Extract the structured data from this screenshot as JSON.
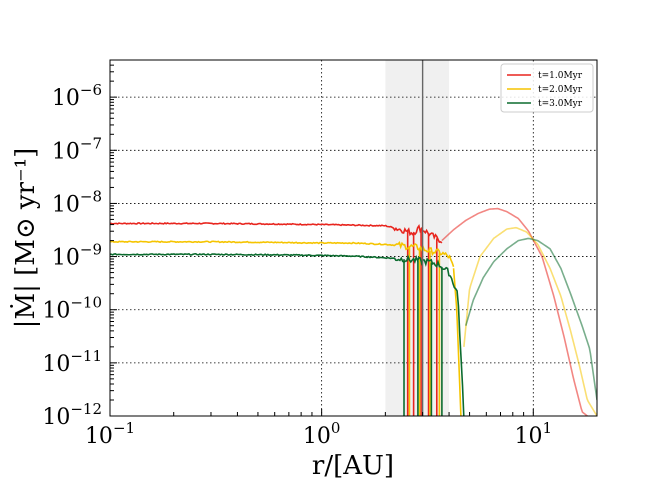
{
  "chart_data": {
    "type": "line",
    "xlabel": "r/[AU]",
    "ylabel": "|Ṁ| [M⊙ yr⁻¹]",
    "xscale": "log",
    "yscale": "log",
    "xlim": [
      0.1,
      20
    ],
    "ylim": [
      1e-12,
      5e-06
    ],
    "grid": true,
    "legend_position": "top-right",
    "x_ticks": [
      {
        "value": 0.1,
        "base": "10",
        "exp": "−1"
      },
      {
        "value": 1,
        "base": "10",
        "exp": "0"
      },
      {
        "value": 10,
        "base": "10",
        "exp": "1"
      }
    ],
    "y_ticks": [
      {
        "value": 1e-12,
        "base": "10",
        "exp": "−12"
      },
      {
        "value": 1e-11,
        "base": "10",
        "exp": "−11"
      },
      {
        "value": 1e-10,
        "base": "10",
        "exp": "−10"
      },
      {
        "value": 1e-09,
        "base": "10",
        "exp": "−9"
      },
      {
        "value": 1e-08,
        "base": "10",
        "exp": "−8"
      },
      {
        "value": 1e-07,
        "base": "10",
        "exp": "−7"
      },
      {
        "value": 1e-06,
        "base": "10",
        "exp": "−6"
      }
    ],
    "shaded_region": {
      "x": [
        2.0,
        4.0
      ],
      "color": "#d9d9d9"
    },
    "vline": {
      "x": 3.0,
      "color": "#666666"
    },
    "series": [
      {
        "name": "t=1.0Myr",
        "color": "#e8251e",
        "inner": {
          "x": [
            0.1,
            0.3,
            0.6,
            1.0,
            1.4,
            2.0,
            2.4,
            2.7,
            2.9,
            3.1,
            3.3,
            3.5,
            3.7
          ],
          "y": [
            4.2e-09,
            4.2e-09,
            4.1e-09,
            4e-09,
            3.9e-09,
            3.8e-09,
            3.2e-09,
            2.8e-09,
            3.5e-09,
            3e-09,
            2.5e-09,
            2.2e-09,
            2e-09
          ]
        },
        "outer": {
          "x": [
            3.7,
            4.2,
            4.8,
            5.5,
            6.2,
            6.8,
            7.5,
            8.5,
            9.5,
            11,
            12.5,
            14,
            15.5,
            17,
            18
          ],
          "y": [
            2e-09,
            3.2e-09,
            4.8e-09,
            6.5e-09,
            7.8e-09,
            8e-09,
            7e-09,
            5.2e-09,
            3e-09,
            1e-09,
            1.8e-10,
            3e-11,
            5e-12,
            1.2e-12,
            1e-12
          ]
        },
        "spikes": [
          2.55,
          2.72,
          2.95,
          3.2,
          3.5
        ]
      },
      {
        "name": "t=2.0Myr",
        "color": "#f5c400",
        "inner": {
          "x": [
            0.1,
            0.3,
            0.6,
            1.0,
            1.4,
            2.0,
            2.4,
            2.8,
            3.2,
            3.6,
            4.0,
            4.2
          ],
          "y": [
            1.9e-09,
            1.9e-09,
            1.85e-09,
            1.8e-09,
            1.8e-09,
            1.7e-09,
            1.6e-09,
            1.5e-09,
            1.3e-09,
            1.2e-09,
            1e-09,
            6e-10
          ]
        },
        "dip": {
          "x": [
            4.2,
            4.35,
            4.45,
            4.55
          ],
          "y": [
            6e-10,
            1e-10,
            1e-11,
            1e-12
          ]
        },
        "outer": {
          "x": [
            4.7,
            5.0,
            5.6,
            6.5,
            7.5,
            8.3,
            9.3,
            10.5,
            12,
            13.5,
            15,
            16.5,
            18,
            20
          ],
          "y": [
            2e-11,
            2.5e-10,
            1e-09,
            2.2e-09,
            3.3e-09,
            3.5e-09,
            2.9e-09,
            1.7e-09,
            6e-10,
            1.8e-10,
            4e-11,
            9e-12,
            2e-12,
            1e-12
          ]
        },
        "spikes": [
          2.6,
          2.9,
          3.25,
          3.6
        ]
      },
      {
        "name": "t=3.0Myr",
        "color": "#0b6b2e",
        "inner": {
          "x": [
            0.1,
            0.3,
            0.6,
            1.0,
            1.4,
            2.0,
            2.4,
            2.8,
            3.2,
            3.6,
            4.0,
            4.4,
            4.7
          ],
          "y": [
            1.1e-09,
            1.1e-09,
            1.08e-09,
            1.05e-09,
            1.02e-09,
            9.5e-10,
            9e-10,
            8.5e-10,
            8e-10,
            7e-10,
            5e-10,
            2e-10,
            1e-12
          ]
        },
        "outer": {
          "x": [
            4.8,
            5.2,
            5.8,
            6.5,
            7.5,
            8.5,
            9.5,
            10.5,
            12,
            13.5,
            15,
            17,
            18.5,
            20
          ],
          "y": [
            5e-11,
            1.5e-10,
            4e-10,
            8e-10,
            1.4e-09,
            2e-09,
            2.2e-09,
            2e-09,
            1.4e-09,
            6e-10,
            2e-10,
            5e-11,
            1.8e-11,
            2e-12
          ]
        },
        "spikes": [
          2.45,
          2.85,
          3.3,
          3.7
        ]
      }
    ]
  }
}
